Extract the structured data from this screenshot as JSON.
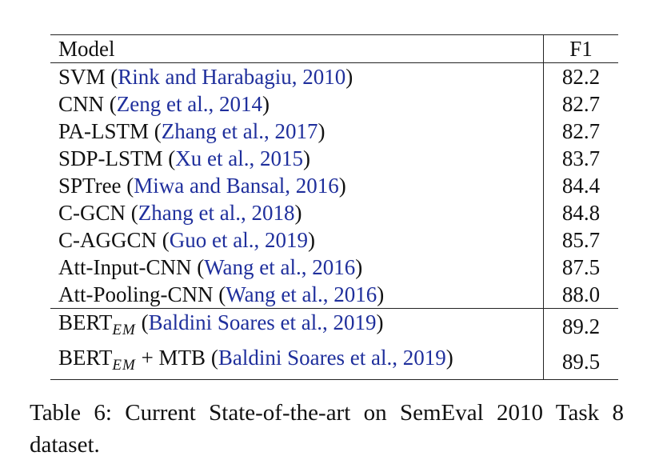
{
  "table": {
    "headers": {
      "model": "Model",
      "f1": "F1"
    },
    "rows": [
      {
        "model": "SVM",
        "cite": "Rink and Harabagiu, 2010",
        "f1": "82.2"
      },
      {
        "model": "CNN",
        "cite": "Zeng et al., 2014",
        "f1": "82.7"
      },
      {
        "model": "PA-LSTM",
        "cite": "Zhang et al., 2017",
        "f1": "82.7"
      },
      {
        "model": "SDP-LSTM",
        "cite": "Xu et al., 2015",
        "f1": "83.7"
      },
      {
        "model": "SPTree",
        "cite": "Miwa and Bansal, 2016",
        "f1": "84.4"
      },
      {
        "model": "C-GCN",
        "cite": "Zhang et al., 2018",
        "f1": "84.8"
      },
      {
        "model": "C-AGGCN",
        "cite": "Guo et al., 2019",
        "f1": "85.7"
      },
      {
        "model": "Att-Input-CNN",
        "cite": "Wang et al., 2016",
        "f1": "87.5"
      },
      {
        "model": "Att-Pooling-CNN",
        "cite": "Wang et al., 2016",
        "f1": "88.0"
      }
    ],
    "bert_rows": [
      {
        "model": "BERT",
        "sub": "EM",
        "suffix": "",
        "cite": "Baldini Soares et al., 2019",
        "f1": "89.2"
      },
      {
        "model": "BERT",
        "sub": "EM",
        "suffix": " + MTB",
        "cite": "Baldini Soares et al., 2019",
        "f1": "89.5"
      }
    ]
  },
  "caption": "Table 6:  Current State-of-the-art on SemEval 2010 Task 8 dataset.",
  "colors": {
    "citation": "#1f2f9c",
    "text": "#111111"
  }
}
